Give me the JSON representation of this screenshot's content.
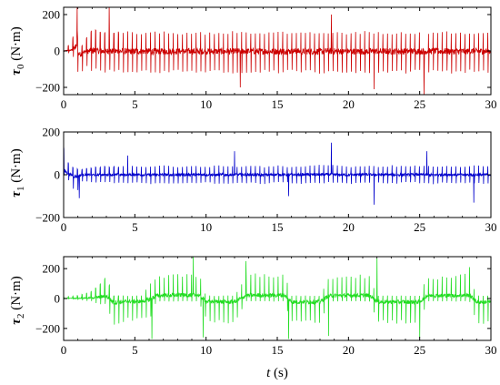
{
  "chart_data": [
    {
      "type": "line",
      "ylabel_symbol": "τ",
      "ylabel_sub": "0",
      "ylabel_unit": " (N·m)",
      "color": "#cc0000",
      "xlim": [
        0,
        30
      ],
      "ylim": [
        -240,
        240
      ],
      "xticks": [
        "0",
        "5",
        "10",
        "15",
        "20",
        "25",
        "30"
      ],
      "yticks": [
        {
          "value": 200,
          "label": "200"
        },
        {
          "value": 0,
          "label": "0"
        },
        {
          "value": -200,
          "label": "−200"
        }
      ],
      "series": [
        {
          "x": [
            0,
            0.3,
            0.6,
            0.9,
            1.0,
            1.2,
            1.5,
            1.8,
            2.1,
            2.4,
            3.0,
            4.0,
            5.0,
            6.0,
            7.0,
            8.0,
            9.0,
            10.0,
            11.0,
            12.0,
            13.0,
            14.0,
            15.0,
            16.0,
            17.0,
            18.0,
            19.0,
            20.0,
            21.0,
            22.0,
            23.0,
            24.0,
            25.0,
            26.0,
            27.0,
            28.0,
            29.0,
            30.0
          ],
          "upper": [
            0,
            30,
            50,
            240,
            40,
            20,
            60,
            100,
            140,
            110,
            110,
            110,
            105,
            110,
            110,
            105,
            110,
            105,
            105,
            110,
            110,
            105,
            110,
            110,
            105,
            110,
            110,
            105,
            110,
            110,
            105,
            110,
            105,
            110,
            110,
            105,
            110,
            110
          ],
          "lower": [
            0,
            -10,
            -20,
            -80,
            -120,
            -150,
            -80,
            -110,
            -120,
            -110,
            -120,
            -120,
            -120,
            -125,
            -120,
            -120,
            -125,
            -120,
            -120,
            -125,
            -120,
            -120,
            -125,
            -120,
            -120,
            -125,
            -120,
            -120,
            -125,
            -120,
            -120,
            -125,
            -120,
            -120,
            -125,
            -120,
            -120,
            -120
          ],
          "spikes": [
            {
              "x": 0.95,
              "y": 240
            },
            {
              "x": 12.4,
              "y": -200
            },
            {
              "x": 18.8,
              "y": 200
            },
            {
              "x": 21.8,
              "y": -210
            },
            {
              "x": 25.3,
              "y": -240
            },
            {
              "x": 3.2,
              "y": 240
            }
          ]
        }
      ]
    },
    {
      "type": "line",
      "ylabel_symbol": "τ",
      "ylabel_sub": "1",
      "ylabel_unit": " (N·m)",
      "color": "#0000cc",
      "xlim": [
        0,
        30
      ],
      "ylim": [
        -200,
        200
      ],
      "xticks": [
        "0",
        "5",
        "10",
        "15",
        "20",
        "25",
        "30"
      ],
      "yticks": [
        {
          "value": 200,
          "label": "200"
        },
        {
          "value": 0,
          "label": "0"
        },
        {
          "value": -200,
          "label": "−200"
        }
      ],
      "series": [
        {
          "x": [
            0,
            0.3,
            0.6,
            0.9,
            1.2,
            1.5,
            2.0,
            3.0,
            4.0,
            5.0,
            6.0,
            7.0,
            8.0,
            9.0,
            10.0,
            11.0,
            12.0,
            13.0,
            14.0,
            15.0,
            16.0,
            17.0,
            18.0,
            19.0,
            20.0,
            21.0,
            22.0,
            23.0,
            24.0,
            25.0,
            26.0,
            27.0,
            28.0,
            29.0,
            30.0
          ],
          "upper": [
            140,
            60,
            40,
            30,
            25,
            30,
            35,
            40,
            40,
            45,
            40,
            45,
            40,
            45,
            40,
            45,
            40,
            45,
            40,
            45,
            40,
            45,
            50,
            45,
            40,
            45,
            40,
            45,
            40,
            45,
            40,
            45,
            40,
            45,
            40
          ],
          "lower": [
            0,
            -20,
            -60,
            -90,
            -40,
            -30,
            -35,
            -40,
            -40,
            -40,
            -45,
            -40,
            -45,
            -40,
            -40,
            -45,
            -40,
            -40,
            -45,
            -40,
            -40,
            -45,
            -40,
            -40,
            -45,
            -40,
            -40,
            -45,
            -40,
            -40,
            -45,
            -40,
            -40,
            -45,
            -40
          ],
          "spikes": [
            {
              "x": 1.1,
              "y": -110
            },
            {
              "x": 4.5,
              "y": 90
            },
            {
              "x": 12.0,
              "y": 110
            },
            {
              "x": 15.8,
              "y": -100
            },
            {
              "x": 18.8,
              "y": 150
            },
            {
              "x": 21.8,
              "y": -140
            },
            {
              "x": 28.8,
              "y": -130
            },
            {
              "x": 25.5,
              "y": 110
            }
          ]
        }
      ]
    },
    {
      "type": "line",
      "ylabel_symbol": "τ",
      "ylabel_sub": "2",
      "ylabel_unit": " (N·m)",
      "color": "#22dd22",
      "xlim": [
        0,
        30
      ],
      "ylim": [
        -280,
        280
      ],
      "xticks": [
        "0",
        "5",
        "10",
        "15",
        "20",
        "25",
        "30"
      ],
      "yticks": [
        {
          "value": 200,
          "label": "200"
        },
        {
          "value": 0,
          "label": "0"
        },
        {
          "value": -200,
          "label": "−200"
        }
      ],
      "series": [
        {
          "x": [
            0,
            1.0,
            2.0,
            2.5,
            3.0,
            3.5,
            4.5,
            5.5,
            6.2,
            6.5,
            7.5,
            8.5,
            9.5,
            10.0,
            11.0,
            12.0,
            12.8,
            13.5,
            14.5,
            15.5,
            16.0,
            17.0,
            18.0,
            18.6,
            19.5,
            20.5,
            21.5,
            22.0,
            23.0,
            24.0,
            25.0,
            25.5,
            26.5,
            27.5,
            28.5,
            29.0,
            30.0
          ],
          "upper": [
            10,
            20,
            50,
            100,
            150,
            20,
            20,
            20,
            120,
            150,
            170,
            170,
            170,
            20,
            20,
            20,
            150,
            170,
            160,
            170,
            20,
            20,
            20,
            150,
            150,
            160,
            160,
            20,
            20,
            20,
            20,
            150,
            150,
            160,
            170,
            20,
            20
          ],
          "lower": [
            0,
            -10,
            -20,
            -40,
            -40,
            -200,
            -150,
            -150,
            -120,
            -20,
            -20,
            -20,
            -20,
            -150,
            -170,
            -170,
            -20,
            -20,
            -20,
            -20,
            -170,
            -170,
            -170,
            -20,
            -20,
            -20,
            -20,
            -160,
            -170,
            -170,
            -170,
            -20,
            -20,
            -20,
            -20,
            -170,
            -170
          ],
          "spikes": [
            {
              "x": 6.2,
              "y": -270
            },
            {
              "x": 9.1,
              "y": 280
            },
            {
              "x": 9.8,
              "y": -260
            },
            {
              "x": 12.8,
              "y": 250
            },
            {
              "x": 15.8,
              "y": -270
            },
            {
              "x": 18.6,
              "y": -250
            },
            {
              "x": 22.0,
              "y": 270
            },
            {
              "x": 25.0,
              "y": -260
            },
            {
              "x": 28.5,
              "y": 210
            }
          ]
        }
      ]
    }
  ],
  "xlabel_var": "t",
  "xlabel_unit": " (s)"
}
